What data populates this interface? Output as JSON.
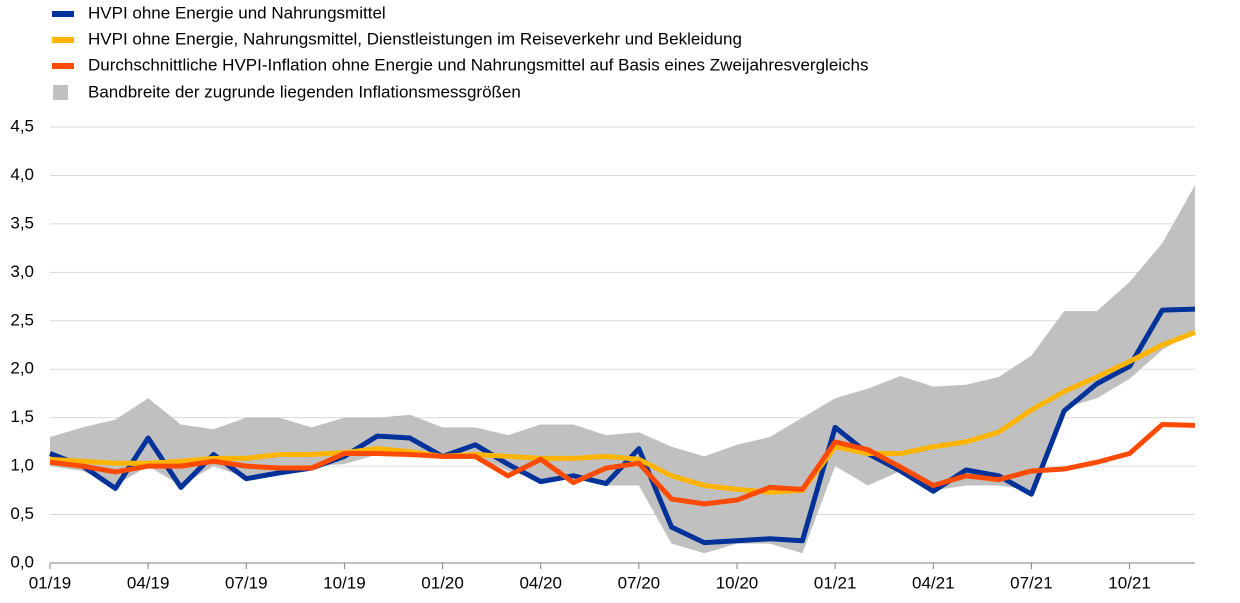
{
  "chart_data": {
    "type": "line",
    "categories": [
      "01/19",
      null,
      null,
      "04/19",
      null,
      null,
      "07/19",
      null,
      null,
      "10/19",
      null,
      null,
      "01/20",
      null,
      null,
      "04/20",
      null,
      null,
      "07/20",
      null,
      null,
      "10/20",
      null,
      null,
      "01/21",
      null,
      null,
      "04/21",
      null,
      null,
      "07/21",
      null,
      null,
      "10/21",
      null,
      null
    ],
    "band": {
      "name": "Bandbreite der zugrunde liegenden Inflationsmessgrößen",
      "color": "#c0c0c0",
      "high": [
        1.3,
        1.4,
        1.48,
        1.7,
        1.43,
        1.38,
        1.5,
        1.5,
        1.4,
        1.5,
        1.5,
        1.53,
        1.4,
        1.4,
        1.32,
        1.43,
        1.43,
        1.32,
        1.35,
        1.2,
        1.1,
        1.22,
        1.3,
        1.5,
        1.7,
        1.8,
        1.93,
        1.82,
        1.84,
        1.92,
        2.14,
        2.6,
        2.6,
        2.9,
        3.3,
        3.9
      ],
      "low": [
        1.0,
        0.95,
        0.8,
        1.0,
        0.8,
        1.0,
        0.88,
        0.95,
        1.0,
        1.02,
        1.12,
        1.12,
        1.08,
        1.1,
        0.95,
        0.85,
        0.88,
        0.8,
        0.8,
        0.2,
        0.1,
        0.2,
        0.2,
        0.1,
        1.0,
        0.8,
        0.95,
        0.75,
        0.8,
        0.8,
        0.75,
        1.6,
        1.7,
        1.9,
        2.2,
        2.4
      ]
    },
    "series": [
      {
        "name": "HVPI ohne Energie und Nahrungsmittel",
        "color": "#003299",
        "values": [
          1.13,
          1.0,
          0.77,
          1.29,
          0.78,
          1.12,
          0.87,
          0.93,
          0.98,
          1.1,
          1.31,
          1.29,
          1.1,
          1.22,
          1.02,
          0.84,
          0.9,
          0.82,
          1.18,
          0.37,
          0.21,
          0.23,
          0.25,
          0.23,
          1.4,
          1.13,
          0.95,
          0.74,
          0.96,
          0.9,
          0.71,
          1.57,
          1.85,
          2.03,
          2.61,
          2.62
        ]
      },
      {
        "name": "HVPI ohne Energie, Nahrungsmittel, Dienstleistungen im Reiseverkehr und Bekleidung",
        "color": "#ffb400",
        "values": [
          1.07,
          1.05,
          1.03,
          1.03,
          1.05,
          1.08,
          1.08,
          1.12,
          1.12,
          1.14,
          1.18,
          1.15,
          1.1,
          1.12,
          1.1,
          1.08,
          1.08,
          1.1,
          1.07,
          0.9,
          0.8,
          0.76,
          0.73,
          0.75,
          1.2,
          1.13,
          1.13,
          1.2,
          1.25,
          1.35,
          1.58,
          1.77,
          1.92,
          2.08,
          2.25,
          2.38
        ]
      },
      {
        "name": "Durchschnittliche HVPI-Inflation ohne Energie und Nahrungsmittel auf Basis eines Zweijahresvergleichs",
        "color": "#ff4b00",
        "values": [
          1.04,
          1.0,
          0.94,
          1.0,
          1.0,
          1.05,
          1.0,
          0.98,
          0.98,
          1.13,
          1.13,
          1.12,
          1.1,
          1.1,
          0.9,
          1.07,
          0.83,
          0.98,
          1.03,
          0.66,
          0.61,
          0.65,
          0.78,
          0.76,
          1.25,
          1.17,
          0.99,
          0.8,
          0.9,
          0.86,
          0.95,
          0.97,
          1.04,
          1.13,
          1.43,
          1.42
        ]
      }
    ],
    "ylim": [
      0,
      4.5
    ],
    "yticks": [
      {
        "value": 0,
        "label": "0,0"
      },
      {
        "value": 0.5,
        "label": "0,5"
      },
      {
        "value": 1,
        "label": "1,0"
      },
      {
        "value": 1.5,
        "label": "1,5"
      },
      {
        "value": 2,
        "label": "2,0"
      },
      {
        "value": 2.5,
        "label": "2,5"
      },
      {
        "value": 3,
        "label": "3,0"
      },
      {
        "value": 3.5,
        "label": "3,5"
      },
      {
        "value": 4,
        "label": "4,0"
      },
      {
        "value": 4.5,
        "label": "4,5"
      }
    ],
    "grid": true
  }
}
